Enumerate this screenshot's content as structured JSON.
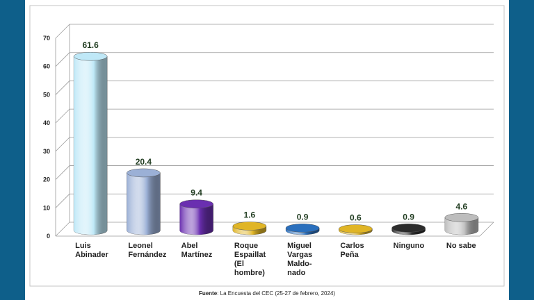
{
  "chart_data": {
    "type": "bar",
    "categories": [
      [
        "Luis",
        "Abinader"
      ],
      [
        "Leonel",
        "Fernández"
      ],
      [
        "Abel",
        "Martínez"
      ],
      [
        "Roque",
        "Espaillat",
        "(El",
        "hombre)"
      ],
      [
        "Miguel",
        "Vargas",
        "Maldo-",
        "nado"
      ],
      [
        "Carlos",
        "Peña"
      ],
      [
        "Ninguno"
      ],
      [
        "No sabe"
      ]
    ],
    "values": [
      61.6,
      20.4,
      9.4,
      1.6,
      0.9,
      0.6,
      0.9,
      4.6
    ],
    "value_labels": [
      "61.6",
      "20.4",
      "9.4",
      "1.6",
      "0.9",
      "0.6",
      "0.9",
      "4.6"
    ],
    "bar_colors": [
      "#bfe8f7",
      "#9bb0d6",
      "#6a2fb0",
      "#e0b526",
      "#2a6fbd",
      "#e0b526",
      "#2c2c2c",
      "#bdbdbd"
    ],
    "yticks": [
      "0",
      "10",
      "20",
      "30",
      "40",
      "50",
      "60",
      "70"
    ],
    "ylim": [
      0,
      70
    ],
    "grid": true,
    "style": "3d-cylinder"
  },
  "source": {
    "label": "Fuente",
    "text": ": La Encuesta del CEC (25-27 de febrero, 2024)"
  }
}
